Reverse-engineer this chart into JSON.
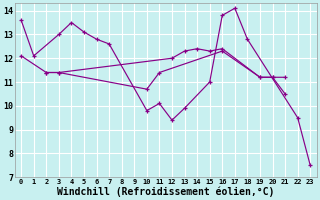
{
  "background_color": "#c8f0f0",
  "grid_color": "#ffffff",
  "line_color": "#880088",
  "xlabel": "Windchill (Refroidissement éolien,°C)",
  "xlabel_fontsize": 7,
  "xlim": [
    -0.5,
    23.5
  ],
  "ylim": [
    7,
    14.3
  ],
  "yticks": [
    7,
    8,
    9,
    10,
    11,
    12,
    13,
    14
  ],
  "xticks": [
    0,
    1,
    2,
    3,
    4,
    5,
    6,
    7,
    8,
    9,
    10,
    11,
    12,
    13,
    14,
    15,
    16,
    17,
    18,
    19,
    20,
    21,
    22,
    23
  ],
  "series": [
    {
      "x": [
        0,
        1,
        3,
        4,
        5,
        6,
        7,
        10,
        11,
        12,
        13,
        15,
        16,
        17,
        18,
        22,
        23
      ],
      "y": [
        13.6,
        12.1,
        13.0,
        13.5,
        13.1,
        12.8,
        12.6,
        9.8,
        10.1,
        9.4,
        9.9,
        11.0,
        13.8,
        14.1,
        12.8,
        9.5,
        7.5
      ]
    },
    {
      "x": [
        2,
        3,
        12,
        13,
        14,
        15,
        16,
        19,
        20,
        21
      ],
      "y": [
        11.4,
        11.4,
        12.0,
        12.3,
        12.4,
        12.3,
        12.4,
        11.2,
        11.2,
        10.5
      ]
    },
    {
      "x": [
        0,
        2,
        3,
        10,
        11,
        16,
        19,
        20,
        21
      ],
      "y": [
        12.1,
        11.4,
        11.4,
        10.7,
        11.4,
        12.3,
        11.2,
        11.2,
        11.2
      ]
    }
  ]
}
